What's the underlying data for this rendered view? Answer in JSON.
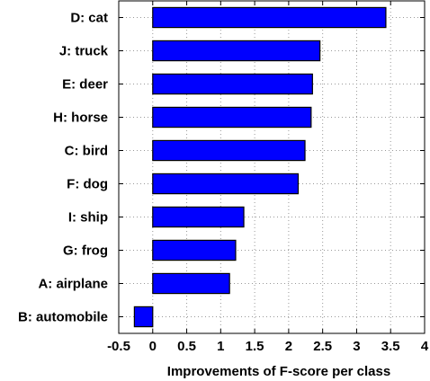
{
  "chart_data": {
    "type": "bar",
    "orientation": "horizontal",
    "categories": [
      "D: cat",
      "J: truck",
      "E: deer",
      "H: horse",
      "C: bird",
      "F: dog",
      "I: ship",
      "G: frog",
      "A: airplane",
      "B: automobile"
    ],
    "values": [
      3.43,
      2.46,
      2.35,
      2.33,
      2.24,
      2.14,
      1.34,
      1.22,
      1.13,
      -0.27
    ],
    "title": "",
    "xlabel": "Improvements of F-score per class",
    "ylabel": "",
    "xlim": [
      -0.5,
      4
    ],
    "xticks": [
      "-0.5",
      "0",
      "0.5",
      "1",
      "1.5",
      "2",
      "2.5",
      "3",
      "3.5",
      "4"
    ],
    "grid": true,
    "bar_color": "#0000ff",
    "edge_color": "#000000"
  }
}
